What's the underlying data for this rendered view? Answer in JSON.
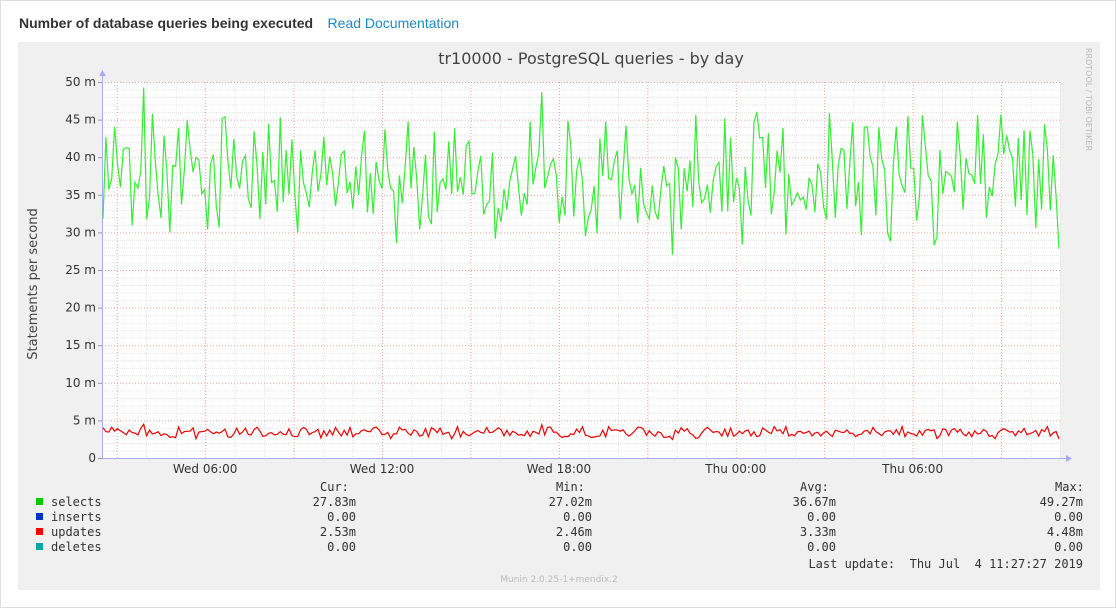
{
  "header": {
    "title": "Number of database queries being executed",
    "link_label": "Read Documentation"
  },
  "chart_data": {
    "type": "line",
    "title": "tr10000 - PostgreSQL queries - by day",
    "ylabel": "Statements per second",
    "xlabel": "",
    "ylim": [
      0,
      50
    ],
    "y_unit": "m",
    "y_ticks": [
      {
        "value": 0,
        "label": "0"
      },
      {
        "value": 5,
        "label": "5 m"
      },
      {
        "value": 10,
        "label": "10 m"
      },
      {
        "value": 15,
        "label": "15 m"
      },
      {
        "value": 20,
        "label": "20 m"
      },
      {
        "value": 25,
        "label": "25 m"
      },
      {
        "value": 30,
        "label": "30 m"
      },
      {
        "value": 35,
        "label": "35 m"
      },
      {
        "value": 40,
        "label": "40 m"
      },
      {
        "value": 45,
        "label": "45 m"
      },
      {
        "value": 50,
        "label": "50 m"
      }
    ],
    "x_range_hours": [
      2.5,
      35
    ],
    "x_ticks": [
      {
        "hour": 6,
        "label": "Wed 06:00"
      },
      {
        "hour": 12,
        "label": "Wed 12:00"
      },
      {
        "hour": 18,
        "label": "Wed 18:00"
      },
      {
        "hour": 24,
        "label": "Thu 00:00"
      },
      {
        "hour": 30,
        "label": "Thu 06:00"
      }
    ],
    "x_minor_step_hours": 1,
    "x_red_step_hours": 3,
    "grid": true,
    "side_label": "RRDTOOL / TOBI OETIKER",
    "footer": "Munin 2.0.25-1+mendix.2",
    "series": [
      {
        "name": "selects",
        "color": "#00cc00",
        "line_color": "#33ee33",
        "cur": "27.83m",
        "min": "27.02m",
        "avg": "36.67m",
        "max": "49.27m",
        "min_value": 27.02,
        "avg_value": 36.67,
        "max_value": 49.27,
        "cur_value": 27.83
      },
      {
        "name": "inserts",
        "color": "#0033cc",
        "line_color": "#0033cc",
        "cur": "0.00",
        "min": "0.00",
        "avg": "0.00",
        "max": "0.00",
        "min_value": 0,
        "avg_value": 0,
        "max_value": 0,
        "cur_value": 0
      },
      {
        "name": "updates",
        "color": "#ff0000",
        "line_color": "#ee0000",
        "cur": "2.53m",
        "min": "2.46m",
        "avg": "3.33m",
        "max": "4.48m",
        "min_value": 2.46,
        "avg_value": 3.33,
        "max_value": 4.48,
        "cur_value": 2.53
      },
      {
        "name": "deletes",
        "color": "#00aaaa",
        "line_color": "#00aaaa",
        "cur": "0.00",
        "min": "0.00",
        "avg": "0.00",
        "max": "0.00",
        "min_value": 0,
        "avg_value": 0,
        "max_value": 0,
        "cur_value": 0
      }
    ],
    "legend_headers": {
      "cur": "Cur:",
      "min": "Min:",
      "avg": "Avg:",
      "max": "Max:"
    },
    "last_update": "Last update:  Thu Jul  4 11:27:27 2019"
  }
}
